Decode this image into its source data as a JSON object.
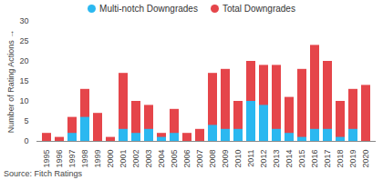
{
  "chart_data": {
    "type": "bar",
    "y_label": "Number of Rating Actions",
    "source": "Source: Fitch Ratings",
    "categories": [
      "1995",
      "1996",
      "1997",
      "1998",
      "1999",
      "2000",
      "2001",
      "2002",
      "2003",
      "2004",
      "2005",
      "2006",
      "2007",
      "2008",
      "2009",
      "2010",
      "2011",
      "2012",
      "2013",
      "2014",
      "2015",
      "2016",
      "2017",
      "2018",
      "2019",
      "2020"
    ],
    "series": [
      {
        "name": "Multi-notch Downgrades",
        "color": "#2bb8f0",
        "values": [
          0,
          0,
          2,
          6,
          0,
          0,
          3,
          2,
          3,
          1,
          2,
          0,
          0,
          4,
          3,
          3,
          10,
          9,
          3,
          2,
          1,
          3,
          3,
          1,
          3,
          0
        ]
      },
      {
        "name": "Total Downgrades",
        "color": "#e5454a",
        "values": [
          2,
          1,
          6,
          13,
          7,
          1,
          17,
          10,
          9,
          2,
          8,
          2,
          3,
          17,
          18,
          10,
          20,
          19,
          19,
          11,
          18,
          24,
          20,
          10,
          13,
          14
        ]
      }
    ],
    "stacked": false,
    "legend": "top",
    "ylim": [
      0,
      30
    ],
    "yticks": [
      0,
      5,
      10,
      15,
      20,
      25,
      30
    ],
    "grid": false
  }
}
